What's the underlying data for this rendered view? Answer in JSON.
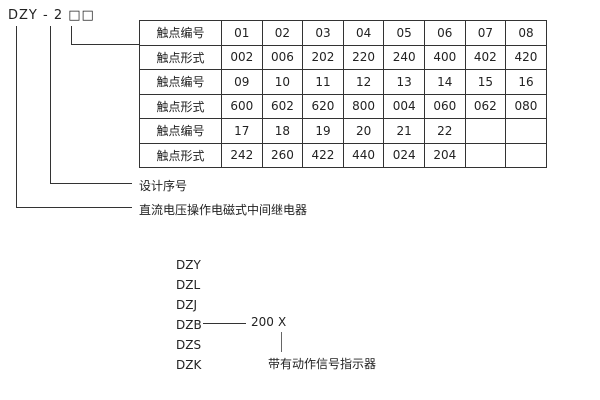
{
  "model": {
    "prefix": "DZY",
    "separator": "-",
    "digit": "2",
    "boxes": "□□"
  },
  "table": {
    "rows": [
      {
        "label": "触点编号",
        "cells": [
          "01",
          "02",
          "03",
          "04",
          "05",
          "06",
          "07",
          "08"
        ]
      },
      {
        "label": "触点形式",
        "cells": [
          "002",
          "006",
          "202",
          "220",
          "240",
          "400",
          "402",
          "420"
        ]
      },
      {
        "label": "触点编号",
        "cells": [
          "09",
          "10",
          "11",
          "12",
          "13",
          "14",
          "15",
          "16"
        ]
      },
      {
        "label": "触点形式",
        "cells": [
          "600",
          "602",
          "620",
          "800",
          "004",
          "060",
          "062",
          "080"
        ]
      },
      {
        "label": "触点编号",
        "cells": [
          "17",
          "18",
          "19",
          "20",
          "21",
          "22",
          "",
          ""
        ]
      },
      {
        "label": "触点形式",
        "cells": [
          "242",
          "260",
          "422",
          "440",
          "024",
          "204",
          "",
          ""
        ]
      }
    ]
  },
  "labels": {
    "design_no": "设计序号",
    "relay": "直流电压操作电磁式中间继电器"
  },
  "series_list": [
    "DZY",
    "DZL",
    "DZJ",
    "DZB",
    "DZS",
    "DZK"
  ],
  "example": {
    "code": "200",
    "suffix": "X",
    "suffix_label": "带有动作信号指示器"
  }
}
